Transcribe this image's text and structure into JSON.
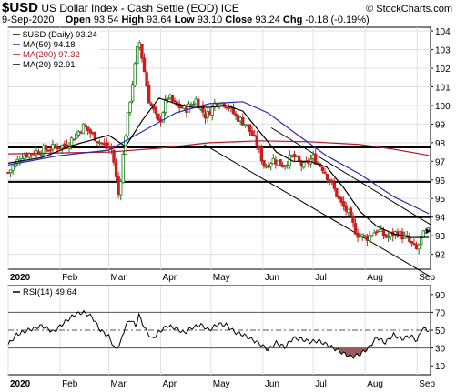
{
  "header": {
    "symbol": "$USD",
    "name": "US Dollar Index - Cash Settle (EOD)",
    "exchange": "ICE",
    "date": "9-Sep-2020",
    "open_label": "Open",
    "open": "93.54",
    "high_label": "High",
    "high": "93.64",
    "low_label": "Low",
    "low": "93.10",
    "close_label": "Close",
    "close": "93.24",
    "chg_label": "Chg",
    "chg": "-0.18 (-0.19%)",
    "watermark": "© StockCharts.com"
  },
  "chart_data": [
    {
      "type": "candlestick",
      "legend": [
        {
          "label": "$USD (Daily) 93.24",
          "color": "#000000"
        },
        {
          "label": "MA(50) 94.18",
          "color": "#2b2bb0"
        },
        {
          "label": "MA(200) 97.32",
          "color": "#b01a2a"
        },
        {
          "label": "MA(20) 92.91",
          "color": "#000000"
        }
      ],
      "ylim": [
        91.2,
        104.2
      ],
      "y_ticks": [
        92,
        93,
        94,
        95,
        96,
        97,
        98,
        99,
        100,
        101,
        102,
        103,
        104
      ],
      "x_labels": [
        "2020",
        "Feb",
        "Mar",
        "Apr",
        "May",
        "Jun",
        "Jul",
        "Aug",
        "Sep"
      ],
      "x_label_days": [
        0,
        31,
        60,
        91,
        121,
        152,
        182,
        213,
        244
      ],
      "horizontal_lines": [
        97.75,
        95.9,
        94.0
      ],
      "trend_channel": [
        {
          "from": {
            "day": 117,
            "y": 97.9
          },
          "to": {
            "day": 252,
            "y": 90.8
          }
        },
        {
          "from": {
            "day": 157,
            "y": 98.8
          },
          "to": {
            "day": 252,
            "y": 93.6
          }
        }
      ],
      "anchors": [
        {
          "day": 0,
          "close": 96.4
        },
        {
          "day": 8,
          "close": 97.3
        },
        {
          "day": 20,
          "close": 97.6
        },
        {
          "day": 35,
          "close": 97.9
        },
        {
          "day": 45,
          "close": 98.9
        },
        {
          "day": 55,
          "close": 98.0
        },
        {
          "day": 62,
          "close": 97.6
        },
        {
          "day": 66,
          "close": 95.1
        },
        {
          "day": 70,
          "close": 98.5
        },
        {
          "day": 74,
          "close": 101.1
        },
        {
          "day": 78,
          "close": 103.6
        },
        {
          "day": 84,
          "close": 100.3
        },
        {
          "day": 90,
          "close": 99.0
        },
        {
          "day": 95,
          "close": 100.5
        },
        {
          "day": 100,
          "close": 100.0
        },
        {
          "day": 106,
          "close": 99.8
        },
        {
          "day": 112,
          "close": 100.3
        },
        {
          "day": 118,
          "close": 99.4
        },
        {
          "day": 124,
          "close": 100.2
        },
        {
          "day": 130,
          "close": 100.1
        },
        {
          "day": 136,
          "close": 99.4
        },
        {
          "day": 142,
          "close": 99.0
        },
        {
          "day": 148,
          "close": 98.0
        },
        {
          "day": 153,
          "close": 96.7
        },
        {
          "day": 158,
          "close": 97.1
        },
        {
          "day": 164,
          "close": 96.8
        },
        {
          "day": 170,
          "close": 97.3
        },
        {
          "day": 176,
          "close": 96.7
        },
        {
          "day": 182,
          "close": 97.2
        },
        {
          "day": 188,
          "close": 96.6
        },
        {
          "day": 194,
          "close": 95.6
        },
        {
          "day": 198,
          "close": 94.8
        },
        {
          "day": 203,
          "close": 94.2
        },
        {
          "day": 208,
          "close": 93.1
        },
        {
          "day": 214,
          "close": 92.9
        },
        {
          "day": 220,
          "close": 93.3
        },
        {
          "day": 226,
          "close": 92.9
        },
        {
          "day": 232,
          "close": 93.2
        },
        {
          "day": 238,
          "close": 92.8
        },
        {
          "day": 244,
          "close": 92.2
        },
        {
          "day": 247,
          "close": 93.0
        },
        {
          "day": 251,
          "close": 93.24
        }
      ],
      "ma50": [
        {
          "day": 0,
          "y": 96.8
        },
        {
          "day": 30,
          "y": 97.3
        },
        {
          "day": 60,
          "y": 97.6
        },
        {
          "day": 80,
          "y": 98.6
        },
        {
          "day": 100,
          "y": 99.6
        },
        {
          "day": 120,
          "y": 100.1
        },
        {
          "day": 140,
          "y": 100.2
        },
        {
          "day": 155,
          "y": 99.6
        },
        {
          "day": 170,
          "y": 98.6
        },
        {
          "day": 190,
          "y": 97.3
        },
        {
          "day": 210,
          "y": 96.3
        },
        {
          "day": 230,
          "y": 95.1
        },
        {
          "day": 251,
          "y": 94.18
        }
      ],
      "ma200": [
        {
          "day": 0,
          "y": 97.4
        },
        {
          "day": 60,
          "y": 97.5
        },
        {
          "day": 90,
          "y": 97.7
        },
        {
          "day": 120,
          "y": 98.0
        },
        {
          "day": 150,
          "y": 98.1
        },
        {
          "day": 180,
          "y": 98.05
        },
        {
          "day": 210,
          "y": 97.9
        },
        {
          "day": 230,
          "y": 97.65
        },
        {
          "day": 251,
          "y": 97.32
        }
      ],
      "ma20": [
        {
          "day": 0,
          "y": 96.9
        },
        {
          "day": 20,
          "y": 97.2
        },
        {
          "day": 40,
          "y": 97.9
        },
        {
          "day": 60,
          "y": 98.4
        },
        {
          "day": 70,
          "y": 97.8
        },
        {
          "day": 80,
          "y": 99.2
        },
        {
          "day": 90,
          "y": 100.4
        },
        {
          "day": 100,
          "y": 100.1
        },
        {
          "day": 110,
          "y": 99.9
        },
        {
          "day": 120,
          "y": 99.9
        },
        {
          "day": 130,
          "y": 100.0
        },
        {
          "day": 140,
          "y": 99.7
        },
        {
          "day": 150,
          "y": 98.6
        },
        {
          "day": 160,
          "y": 97.5
        },
        {
          "day": 170,
          "y": 97.0
        },
        {
          "day": 180,
          "y": 97.0
        },
        {
          "day": 190,
          "y": 96.7
        },
        {
          "day": 200,
          "y": 95.6
        },
        {
          "day": 210,
          "y": 94.3
        },
        {
          "day": 220,
          "y": 93.5
        },
        {
          "day": 230,
          "y": 93.1
        },
        {
          "day": 240,
          "y": 92.9
        },
        {
          "day": 251,
          "y": 92.91
        }
      ]
    },
    {
      "type": "line",
      "legend": [
        {
          "label": "RSI(14) 49.64",
          "color": "#000000"
        }
      ],
      "ylim": [
        0,
        100
      ],
      "y_ticks": [
        10,
        30,
        50,
        70,
        90
      ],
      "levels": [
        30,
        50,
        70
      ],
      "x_labels": [
        "2020",
        "Feb",
        "Mar",
        "Apr",
        "May",
        "Jun",
        "Jul",
        "Aug",
        "Sep"
      ],
      "x_label_days": [
        0,
        31,
        60,
        91,
        121,
        152,
        182,
        213,
        244
      ],
      "anchors": [
        {
          "day": 0,
          "y": 34
        },
        {
          "day": 5,
          "y": 45
        },
        {
          "day": 12,
          "y": 50
        },
        {
          "day": 20,
          "y": 55
        },
        {
          "day": 27,
          "y": 48
        },
        {
          "day": 33,
          "y": 58
        },
        {
          "day": 40,
          "y": 68
        },
        {
          "day": 45,
          "y": 70
        },
        {
          "day": 50,
          "y": 65
        },
        {
          "day": 55,
          "y": 50
        },
        {
          "day": 60,
          "y": 43
        },
        {
          "day": 64,
          "y": 28
        },
        {
          "day": 67,
          "y": 36
        },
        {
          "day": 70,
          "y": 55
        },
        {
          "day": 73,
          "y": 62
        },
        {
          "day": 76,
          "y": 55
        },
        {
          "day": 78,
          "y": 67
        },
        {
          "day": 82,
          "y": 50
        },
        {
          "day": 86,
          "y": 40
        },
        {
          "day": 90,
          "y": 48
        },
        {
          "day": 95,
          "y": 55
        },
        {
          "day": 100,
          "y": 52
        },
        {
          "day": 105,
          "y": 47
        },
        {
          "day": 110,
          "y": 53
        },
        {
          "day": 115,
          "y": 56
        },
        {
          "day": 120,
          "y": 50
        },
        {
          "day": 125,
          "y": 57
        },
        {
          "day": 130,
          "y": 56
        },
        {
          "day": 135,
          "y": 48
        },
        {
          "day": 140,
          "y": 45
        },
        {
          "day": 145,
          "y": 40
        },
        {
          "day": 150,
          "y": 35
        },
        {
          "day": 155,
          "y": 28
        },
        {
          "day": 160,
          "y": 36
        },
        {
          "day": 165,
          "y": 31
        },
        {
          "day": 170,
          "y": 41
        },
        {
          "day": 175,
          "y": 40
        },
        {
          "day": 180,
          "y": 37
        },
        {
          "day": 185,
          "y": 38
        },
        {
          "day": 190,
          "y": 34
        },
        {
          "day": 195,
          "y": 29
        },
        {
          "day": 200,
          "y": 24
        },
        {
          "day": 205,
          "y": 20
        },
        {
          "day": 210,
          "y": 23
        },
        {
          "day": 215,
          "y": 30
        },
        {
          "day": 220,
          "y": 42
        },
        {
          "day": 225,
          "y": 36
        },
        {
          "day": 230,
          "y": 45
        },
        {
          "day": 235,
          "y": 40
        },
        {
          "day": 240,
          "y": 44
        },
        {
          "day": 244,
          "y": 38
        },
        {
          "day": 247,
          "y": 52
        },
        {
          "day": 251,
          "y": 49.64
        }
      ]
    }
  ]
}
